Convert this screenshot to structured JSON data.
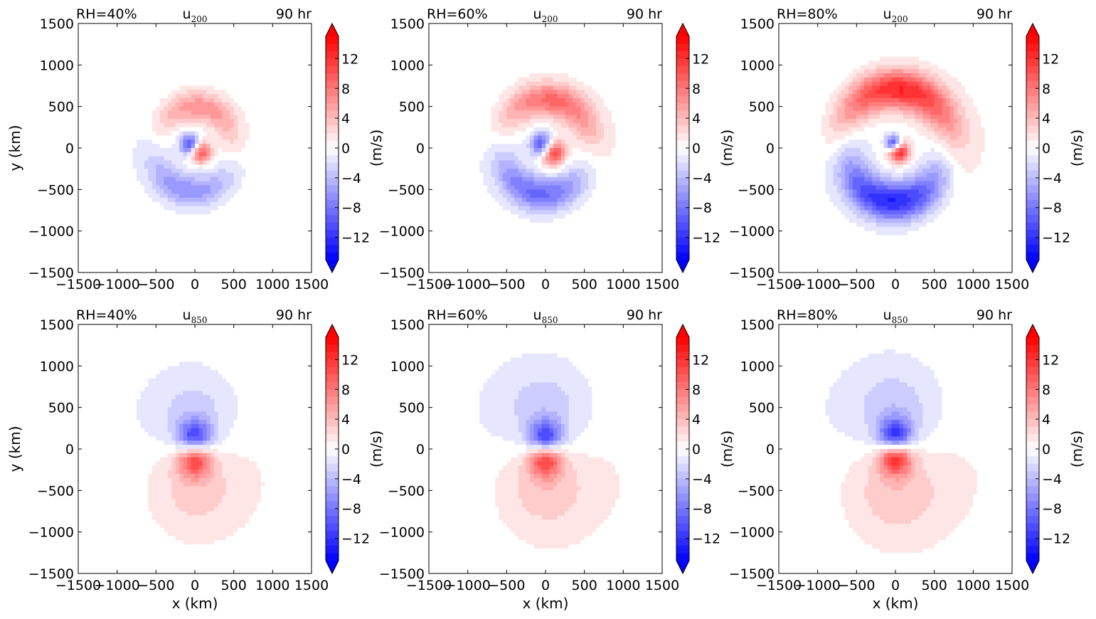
{
  "chart_data": [
    {
      "type": "heatmap",
      "level": "200",
      "rh_label": "RH=40%",
      "field_label": "u",
      "field_sub": "200",
      "time_label": "90 hr",
      "xlabel": "",
      "ylabel": "y (km)",
      "cbar_label": "(m/s)",
      "xlim": [
        -1500,
        1500
      ],
      "ylim": [
        -1500,
        1500
      ],
      "xticks": [
        -1500,
        -1000,
        -500,
        0,
        500,
        1000,
        1500
      ],
      "yticks": [
        1500,
        1000,
        500,
        0,
        -500,
        -1000,
        -1500
      ],
      "cbar_ticks": [
        12,
        8,
        4,
        0,
        -4,
        -8,
        -12
      ],
      "cbar_range": [
        -15,
        15
      ],
      "strength": 0.75,
      "features": [
        {
          "kind": "ring",
          "cx": 0,
          "cy": 0,
          "r": 500,
          "w": 260,
          "amp": 9,
          "center_deg": 80,
          "spread_deg": 70
        },
        {
          "kind": "ring",
          "cx": 0,
          "cy": 0,
          "r": 520,
          "w": 280,
          "amp": -9,
          "center_deg": 260,
          "spread_deg": 70
        },
        {
          "kind": "blob",
          "cx": 70,
          "cy": -50,
          "r": 90,
          "amp": 15
        },
        {
          "kind": "blob",
          "cx": -60,
          "cy": 40,
          "r": 90,
          "amp": -15
        }
      ]
    },
    {
      "type": "heatmap",
      "level": "200",
      "rh_label": "RH=60%",
      "field_label": "u",
      "field_sub": "200",
      "time_label": "90 hr",
      "xlabel": "",
      "ylabel": "",
      "cbar_label": "(m/s)",
      "xlim": [
        -1500,
        1500
      ],
      "ylim": [
        -1500,
        1500
      ],
      "xticks": [
        -1500,
        -1000,
        -500,
        0,
        500,
        1000,
        1500
      ],
      "yticks": [
        1500,
        1000,
        500,
        0,
        -500,
        -1000,
        -1500
      ],
      "cbar_ticks": [
        12,
        8,
        4,
        0,
        -4,
        -8,
        -12
      ],
      "cbar_range": [
        -15,
        15
      ],
      "strength": 0.85,
      "features": [
        {
          "kind": "ring",
          "cx": 0,
          "cy": 0,
          "r": 580,
          "w": 300,
          "amp": 11,
          "center_deg": 80,
          "spread_deg": 75
        },
        {
          "kind": "ring",
          "cx": 0,
          "cy": 0,
          "r": 560,
          "w": 300,
          "amp": -11,
          "center_deg": 260,
          "spread_deg": 75
        },
        {
          "kind": "blob",
          "cx": 90,
          "cy": -50,
          "r": 110,
          "amp": 15
        },
        {
          "kind": "blob",
          "cx": -40,
          "cy": 40,
          "r": 100,
          "amp": -15
        }
      ]
    },
    {
      "type": "heatmap",
      "level": "200",
      "rh_label": "RH=80%",
      "field_label": "u",
      "field_sub": "200",
      "time_label": "90 hr",
      "xlabel": "",
      "ylabel": "",
      "cbar_label": "(m/s)",
      "xlim": [
        -1500,
        1500
      ],
      "ylim": [
        -1500,
        1500
      ],
      "xticks": [
        -1500,
        -1000,
        -500,
        0,
        500,
        1000,
        1500
      ],
      "yticks": [
        1500,
        1000,
        500,
        0,
        -500,
        -1000,
        -1500
      ],
      "cbar_ticks": [
        12,
        8,
        4,
        0,
        -4,
        -8,
        -12
      ],
      "cbar_range": [
        -15,
        15
      ],
      "strength": 1.0,
      "features": [
        {
          "kind": "ring",
          "cx": 0,
          "cy": 0,
          "r": 700,
          "w": 340,
          "amp": 14,
          "center_deg": 85,
          "spread_deg": 80
        },
        {
          "kind": "ring",
          "cx": 0,
          "cy": 0,
          "r": 650,
          "w": 340,
          "amp": -14,
          "center_deg": 265,
          "spread_deg": 80
        },
        {
          "kind": "blob",
          "cx": 40,
          "cy": -40,
          "r": 90,
          "amp": 15
        },
        {
          "kind": "blob",
          "cx": -20,
          "cy": 50,
          "r": 70,
          "amp": -15
        }
      ]
    },
    {
      "type": "heatmap",
      "level": "850",
      "rh_label": "RH=40%",
      "field_label": "u",
      "field_sub": "850",
      "time_label": "90 hr",
      "xlabel": "x (km)",
      "ylabel": "y (km)",
      "cbar_label": "(m/s)",
      "xlim": [
        -1500,
        1500
      ],
      "ylim": [
        -1500,
        1500
      ],
      "xticks": [
        -1500,
        -1000,
        -500,
        0,
        500,
        1000,
        1500
      ],
      "yticks": [
        1500,
        1000,
        500,
        0,
        -500,
        -1000,
        -1500
      ],
      "cbar_ticks": [
        12,
        8,
        4,
        0,
        -4,
        -8,
        -12
      ],
      "cbar_range": [
        -15,
        15
      ],
      "strength": 0.85,
      "features": [
        {
          "kind": "blob",
          "cx": 0,
          "cy": 120,
          "r": 150,
          "amp": -14
        },
        {
          "kind": "blob",
          "cx": 0,
          "cy": -110,
          "r": 150,
          "amp": 14
        },
        {
          "kind": "blob",
          "cx": 0,
          "cy": 380,
          "r": 380,
          "amp": -4
        },
        {
          "kind": "blob",
          "cx": 0,
          "cy": -420,
          "r": 420,
          "amp": 4
        }
      ]
    },
    {
      "type": "heatmap",
      "level": "850",
      "rh_label": "RH=60%",
      "field_label": "u",
      "field_sub": "850",
      "time_label": "90 hr",
      "xlabel": "x (km)",
      "ylabel": "",
      "cbar_label": "(m/s)",
      "xlim": [
        -1500,
        1500
      ],
      "ylim": [
        -1500,
        1500
      ],
      "xticks": [
        -1500,
        -1000,
        -500,
        0,
        500,
        1000,
        1500
      ],
      "yticks": [
        1500,
        1000,
        500,
        0,
        -500,
        -1000,
        -1500
      ],
      "cbar_ticks": [
        12,
        8,
        4,
        0,
        -4,
        -8,
        -12
      ],
      "cbar_range": [
        -15,
        15
      ],
      "strength": 0.9,
      "features": [
        {
          "kind": "blob",
          "cx": 0,
          "cy": 110,
          "r": 150,
          "amp": -14
        },
        {
          "kind": "blob",
          "cx": 0,
          "cy": -110,
          "r": 150,
          "amp": 14
        },
        {
          "kind": "blob",
          "cx": 0,
          "cy": 420,
          "r": 420,
          "amp": -4
        },
        {
          "kind": "blob",
          "cx": 0,
          "cy": -420,
          "r": 440,
          "amp": 4
        }
      ]
    },
    {
      "type": "heatmap",
      "level": "850",
      "rh_label": "RH=80%",
      "field_label": "u",
      "field_sub": "850",
      "time_label": "90 hr",
      "xlabel": "x (km)",
      "ylabel": "",
      "cbar_label": "(m/s)",
      "xlim": [
        -1500,
        1500
      ],
      "ylim": [
        -1500,
        1500
      ],
      "xticks": [
        -1500,
        -1000,
        -500,
        0,
        500,
        1000,
        1500
      ],
      "yticks": [
        1500,
        1000,
        500,
        0,
        -500,
        -1000,
        -1500
      ],
      "cbar_ticks": [
        12,
        8,
        4,
        0,
        -4,
        -8,
        -12
      ],
      "cbar_range": [
        -15,
        15
      ],
      "strength": 0.95,
      "features": [
        {
          "kind": "blob",
          "cx": 0,
          "cy": 140,
          "r": 150,
          "amp": -14
        },
        {
          "kind": "blob",
          "cx": 0,
          "cy": -90,
          "r": 150,
          "amp": 14
        },
        {
          "kind": "blob",
          "cx": 0,
          "cy": 420,
          "r": 420,
          "amp": -4
        },
        {
          "kind": "blob",
          "cx": 0,
          "cy": -440,
          "r": 460,
          "amp": 4
        }
      ]
    }
  ],
  "colors": {
    "positive": "#ff0000",
    "negative": "#0000ff",
    "zero": "#ffffff"
  }
}
